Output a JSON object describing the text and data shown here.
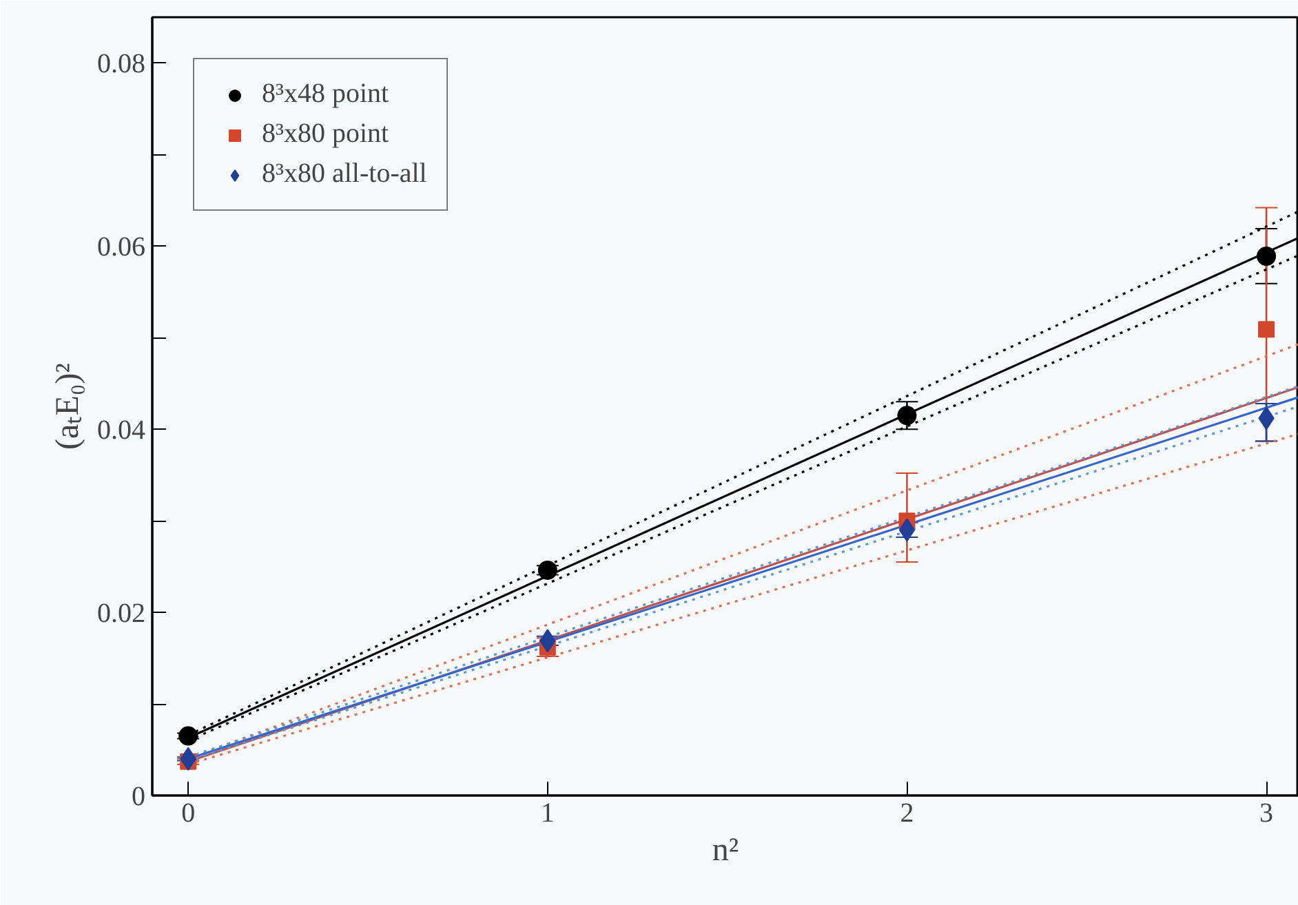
{
  "chart_data": {
    "type": "scatter",
    "xlabel": "n²",
    "ylabel": "(aₜE₀)²",
    "xlim": [
      -0.1,
      3.09
    ],
    "ylim": [
      0,
      0.085
    ],
    "xticks": [
      0,
      1,
      2,
      3
    ],
    "yticks": [
      {
        "value": 0,
        "label": "0"
      },
      {
        "value": 0.01,
        "label": null
      },
      {
        "value": 0.02,
        "label": "0.02"
      },
      {
        "value": 0.03,
        "label": null
      },
      {
        "value": 0.04,
        "label": "0.04"
      },
      {
        "value": 0.05,
        "label": null
      },
      {
        "value": 0.06,
        "label": "0.06"
      },
      {
        "value": 0.07,
        "label": null
      },
      {
        "value": 0.08,
        "label": "0.08"
      }
    ],
    "grid": false,
    "legend": "top left",
    "series": [
      {
        "type": "line",
        "color": "#000000",
        "x": [
          0,
          3.09
        ],
        "values": [
          0.0063,
          0.0609
        ],
        "line_style": "solid",
        "marker": "none"
      },
      {
        "type": "line",
        "color": "#000000",
        "x": [
          0,
          3.09
        ],
        "values": [
          0.0066,
          0.0638
        ],
        "line_style": "dotted",
        "marker": "none"
      },
      {
        "type": "line",
        "color": "#000000",
        "x": [
          0,
          3.09
        ],
        "values": [
          0.006,
          0.059
        ],
        "line_style": "dotted",
        "marker": "none"
      },
      {
        "type": "line",
        "color": "#c0504d",
        "x": [
          0,
          3.09
        ],
        "values": [
          0.0037,
          0.0446
        ],
        "line_style": "solid",
        "marker": "none"
      },
      {
        "type": "line",
        "color": "#e07050",
        "x": [
          0,
          3.09
        ],
        "values": [
          0.004,
          0.0493
        ],
        "line_style": "dotted",
        "marker": "none"
      },
      {
        "type": "line",
        "color": "#e07050",
        "x": [
          0,
          3.09
        ],
        "values": [
          0.0034,
          0.0395
        ],
        "line_style": "dotted",
        "marker": "none"
      },
      {
        "type": "line",
        "color": "#3366cc",
        "x": [
          0,
          3.09
        ],
        "values": [
          0.004,
          0.0435
        ],
        "line_style": "solid",
        "marker": "none"
      },
      {
        "type": "line",
        "color": "#5599dd",
        "x": [
          0,
          3.09
        ],
        "values": [
          0.0042,
          0.0447
        ],
        "line_style": "dotted",
        "marker": "none"
      },
      {
        "type": "line",
        "color": "#5599dd",
        "x": [
          0,
          3.09
        ],
        "values": [
          0.0038,
          0.0425
        ],
        "line_style": "dotted",
        "marker": "none"
      },
      {
        "name": "8³x48 point",
        "color": "#000000",
        "marker": "circle",
        "x": [
          0,
          1,
          2,
          3
        ],
        "values": [
          0.0065,
          0.0246,
          0.0415,
          0.0589
        ],
        "errors": [
          0.0003,
          0.0005,
          0.0015,
          0.003
        ]
      },
      {
        "name": "8³x80 point",
        "color": "#d2462c",
        "marker": "square",
        "x": [
          0,
          1,
          2,
          3
        ],
        "values": [
          0.0037,
          0.0162,
          0.03,
          0.0509
        ],
        "errors": [
          0.0003,
          0.001,
          [
            0.0255,
            0.0352
          ],
          [
            0.0387,
            0.0642
          ]
        ]
      },
      {
        "name": "8³x80 all-to-all",
        "color": "#1f3f99",
        "marker": "diamond",
        "x": [
          0,
          1,
          2,
          3
        ],
        "values": [
          0.004,
          0.0169,
          0.029,
          0.0412
        ],
        "errors": [
          0.0002,
          0.0005,
          0.0008,
          [
            0.0387,
            0.0428
          ]
        ]
      }
    ]
  }
}
